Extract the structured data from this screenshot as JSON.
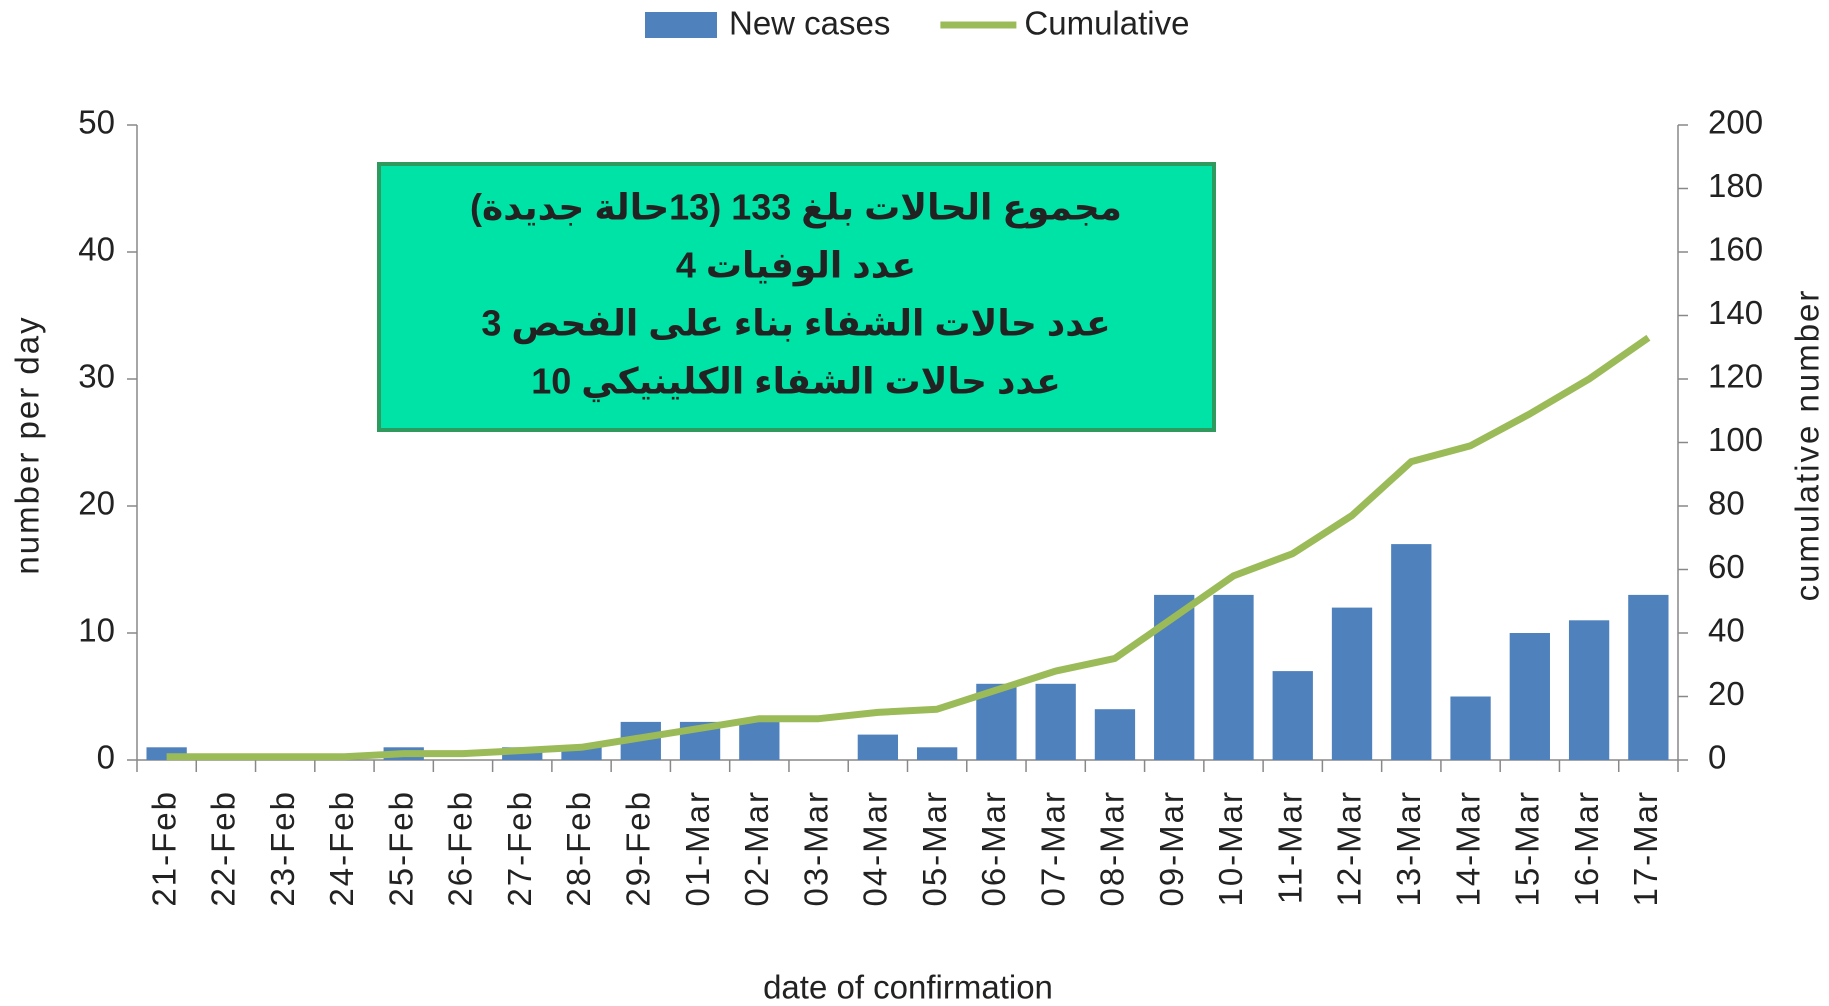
{
  "chart_data": {
    "type": "bar_line",
    "categories": [
      "21-Feb",
      "22-Feb",
      "23-Feb",
      "24-Feb",
      "25-Feb",
      "26-Feb",
      "27-Feb",
      "28-Feb",
      "29-Feb",
      "01-Mar",
      "02-Mar",
      "03-Mar",
      "04-Mar",
      "05-Mar",
      "06-Mar",
      "07-Mar",
      "08-Mar",
      "09-Mar",
      "10-Mar",
      "11-Mar",
      "12-Mar",
      "13-Mar",
      "14-Mar",
      "15-Mar",
      "16-Mar",
      "17-Mar"
    ],
    "series": [
      {
        "name": "New cases",
        "color": "#4f81bd",
        "values": [
          1,
          0,
          0,
          0,
          1,
          0,
          1,
          1,
          3,
          3,
          3,
          0,
          2,
          1,
          6,
          6,
          4,
          13,
          13,
          7,
          12,
          17,
          5,
          10,
          11,
          13
        ]
      },
      {
        "name": "Cumulative",
        "color": "#9bbb59",
        "axis": "y2",
        "values": [
          1,
          1,
          1,
          1,
          2,
          2,
          3,
          4,
          7,
          10,
          13,
          13,
          15,
          16,
          22,
          28,
          32,
          45,
          58,
          65,
          77,
          94,
          99,
          109,
          120,
          133
        ]
      }
    ],
    "xlabel": "date of confirmation",
    "ylabel": "number per day",
    "y2label": "cumulative number",
    "ylim": [
      0,
      50
    ],
    "yticks": [
      0,
      10,
      20,
      30,
      40,
      50
    ],
    "y2lim": [
      0,
      200
    ],
    "y2ticks": [
      0,
      20,
      40,
      60,
      80,
      100,
      120,
      140,
      160,
      180,
      200
    ],
    "annotation": [
      "مجموع الحالات بلغ 133  (13حالة جديدة)",
      "عدد الوفيات 4",
      "عدد حالات الشفاء بناء على الفحص 3",
      "عدد حالات الشفاء الكلينيكي 10"
    ],
    "legend": "top"
  }
}
